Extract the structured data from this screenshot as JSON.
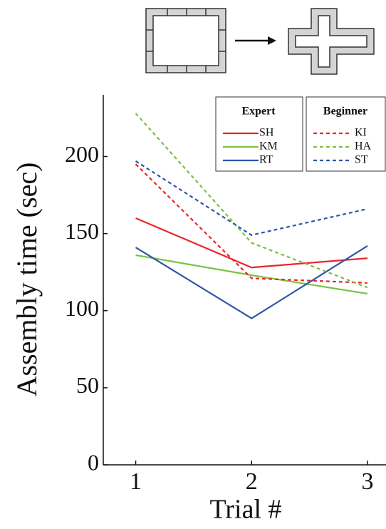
{
  "chart_data": {
    "type": "line",
    "xlabel": "Trial #",
    "ylabel": "Assembly time (sec)",
    "x": [
      1,
      2,
      3
    ],
    "xlim": [
      0.72,
      3.16
    ],
    "xticks": [
      1,
      2,
      3
    ],
    "ylim": [
      0,
      240
    ],
    "yticks": [
      0,
      50,
      100,
      150,
      200
    ],
    "legend_titles": [
      "Expert",
      "Beginner"
    ],
    "series": [
      {
        "name": "SH",
        "color": "#e8262a",
        "linestyle": "solid",
        "values": [
          160,
          128,
          134
        ]
      },
      {
        "name": "KM",
        "color": "#7ac143",
        "linestyle": "solid",
        "values": [
          136,
          123,
          111
        ]
      },
      {
        "name": "RT",
        "color": "#2f56a6",
        "linestyle": "solid",
        "values": [
          141,
          95,
          142
        ]
      },
      {
        "name": "KI",
        "color": "#e8262a",
        "linestyle": "dashed",
        "values": [
          195,
          121,
          118
        ]
      },
      {
        "name": "HA",
        "color": "#7ac143",
        "linestyle": "dashed",
        "values": [
          228,
          144,
          115
        ]
      },
      {
        "name": "ST",
        "color": "#2f56a6",
        "linestyle": "dashed",
        "values": [
          197,
          149,
          166
        ]
      }
    ]
  }
}
